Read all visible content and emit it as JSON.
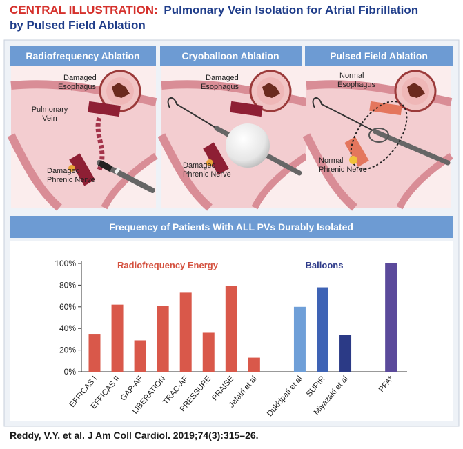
{
  "header": {
    "label": "CENTRAL ILLUSTRATION:",
    "title": [
      "Pulmonary Vein Isolation for Atrial Fibrillation",
      "by Pulsed Field Ablation"
    ]
  },
  "panels": [
    {
      "title": "Radiofrequency Ablation",
      "labels": [
        [
          "Damaged",
          "Esophagus"
        ],
        [
          "Pulmonary",
          "Vein"
        ],
        [
          "Damaged",
          "Phrenic Nerve"
        ]
      ]
    },
    {
      "title": "Cryoballoon Ablation",
      "labels": [
        [
          "Damaged",
          "Esophagus"
        ],
        [
          "Damaged",
          "Phrenic Nerve"
        ]
      ]
    },
    {
      "title": "Pulsed Field Ablation",
      "labels": [
        [
          "Normal",
          "Esophagus"
        ],
        [
          "Normal",
          "Phrenic Nerve"
        ]
      ]
    }
  ],
  "chart_data": {
    "type": "bar",
    "title": "Frequency of Patients With ALL PVs Durably Isolated",
    "categories": [
      "EFFICAS I",
      "EFFICAS II",
      "GAP-AF",
      "LIBERATION",
      "TRAC-AF",
      "PRESSURE",
      "PRAISE",
      "Jefairi et al",
      null,
      "Dukkipati et al",
      "SUPIR",
      "Miyazaki et al",
      null,
      "PFA*"
    ],
    "values": [
      35,
      62,
      29,
      61,
      73,
      36,
      79,
      13,
      null,
      60,
      78,
      34,
      null,
      100
    ],
    "colors": [
      "#d9584a",
      "#d9584a",
      "#d9584a",
      "#d9584a",
      "#d9584a",
      "#d9584a",
      "#d9584a",
      "#d9584a",
      null,
      "#6f9fd8",
      "#3e63b5",
      "#2b3a86",
      null,
      "#5b4a9b"
    ],
    "annotations": [
      {
        "text": "Radiofrequency Energy",
        "color": "#d4513f"
      },
      {
        "text": "Balloons",
        "color": "#2e3b8a"
      }
    ],
    "ylim": [
      0,
      100
    ],
    "yticks": [
      {
        "value": 0,
        "label": "0%"
      },
      {
        "value": 20,
        "label": "20%"
      },
      {
        "value": 40,
        "label": "40%"
      },
      {
        "value": 60,
        "label": "60%"
      },
      {
        "value": 80,
        "label": "80%"
      },
      {
        "value": 100,
        "label": "100%"
      }
    ],
    "grid": false
  },
  "citation": "Reddy, V.Y. et al. J Am Coll Cardiol. 2019;74(3):315–26."
}
